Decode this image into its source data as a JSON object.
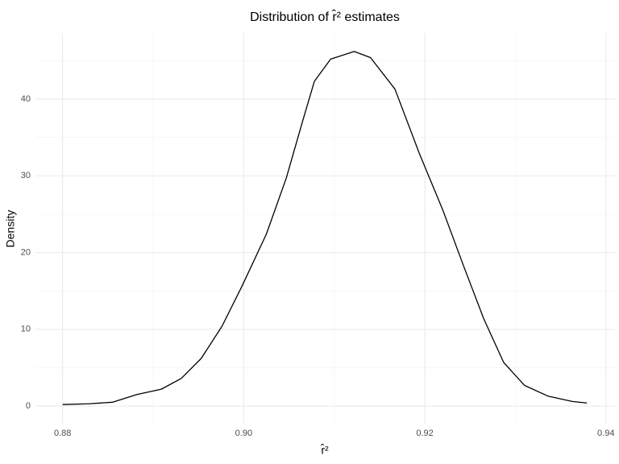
{
  "chart_data": {
    "type": "line",
    "title": "Distribution of r̂² estimates",
    "x_label": "r̂²",
    "y_label": "Density",
    "series": [
      {
        "color": "#000000",
        "x": [
          0.88,
          0.8829,
          0.8855,
          0.8882,
          0.8909,
          0.8931,
          0.8953,
          0.8976,
          0.8998,
          0.9025,
          0.9047,
          0.9065,
          0.9078,
          0.9096,
          0.9122,
          0.914,
          0.9167,
          0.9194,
          0.922,
          0.9243,
          0.9265,
          0.9287,
          0.931,
          0.9336,
          0.9363,
          0.9379
        ],
        "values": [
          0.2,
          0.3,
          0.5,
          1.5,
          2.2,
          3.6,
          6.2,
          10.4,
          15.6,
          22.4,
          29.7,
          37.1,
          42.3,
          45.2,
          46.2,
          45.4,
          41.3,
          32.9,
          25.5,
          18.2,
          11.4,
          5.7,
          2.7,
          1.3,
          0.6,
          0.4
        ]
      }
    ],
    "xlim": [
      0.877,
      0.941
    ],
    "xticks": [
      0.88,
      0.9,
      0.92,
      0.94
    ],
    "ylim": [
      -2.3,
      48.6
    ],
    "yticks": [
      0,
      10,
      20,
      30,
      40
    ],
    "x_minor_grid": [
      0.89,
      0.91,
      0.93
    ],
    "y_minor_grid": [
      5,
      15,
      25,
      35,
      45
    ],
    "grid": true
  }
}
